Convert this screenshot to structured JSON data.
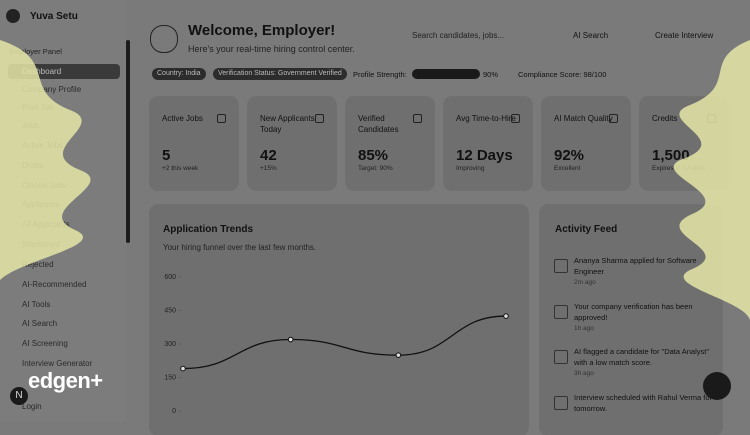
{
  "sidebar": {
    "brand": "Yuva Setu",
    "section": "Employer Panel",
    "badge": "N",
    "items": [
      "Dashboard",
      "Company Profile",
      "Post Job",
      "Jobs",
      "Active Jobs",
      "Drafts",
      "Closed Jobs",
      "Applicants",
      "All Applicants",
      "Shortlisted",
      "Rejected",
      "AI-Recommended",
      "AI Tools",
      "AI Search",
      "AI Screening",
      "Interview Generator",
      "Login"
    ]
  },
  "watermark": "edgen+",
  "header": {
    "title": "Welcome, Employer!",
    "subtitle": "Here's your real-time hiring control center.",
    "search_placeholder": "Search candidates, jobs...",
    "ai_search": "AI Search",
    "create_interview": "Create Interview"
  },
  "chips": {
    "country": "Country: India",
    "verification": "Verification Status: Government Verified",
    "profile_strength_label": "Profile Strength:",
    "profile_strength_value": "90%",
    "compliance": "Compliance Score: 98/100"
  },
  "stats": [
    {
      "label": "Active Jobs",
      "value": "5",
      "note": "+2 this week"
    },
    {
      "label": "New Applicants Today",
      "value": "42",
      "note": "+15%"
    },
    {
      "label": "Verified Candidates",
      "value": "85%",
      "note": "Target: 90%"
    },
    {
      "label": "Avg Time-to-Hire",
      "value": "12 Days",
      "note": "Improving"
    },
    {
      "label": "AI Match Quality",
      "value": "92%",
      "note": "Excellent"
    },
    {
      "label": "Credits",
      "value": "1,500",
      "note": "Expires in 12 days"
    }
  ],
  "chart_data": {
    "type": "line",
    "title": "Application Trends",
    "subtitle": "Your hiring funnel over the last few months.",
    "values": [
      190,
      320,
      250,
      425
    ],
    "color": "#111111",
    "ylim": [
      0,
      600
    ],
    "yticks": [
      0,
      150,
      300,
      450,
      600
    ]
  },
  "activity": {
    "title": "Activity Feed",
    "items": [
      {
        "text": "Ananya Sharma applied for Software Engineer",
        "time": "2m ago"
      },
      {
        "text": "Your company verification has been approved!",
        "time": "1h ago"
      },
      {
        "text": "AI flagged a candidate for \"Data Analyst\" with a low match score.",
        "time": "3h ago"
      },
      {
        "text": "Interview scheduled with Rahul Verma for tomorrow.",
        "time": ""
      }
    ]
  }
}
